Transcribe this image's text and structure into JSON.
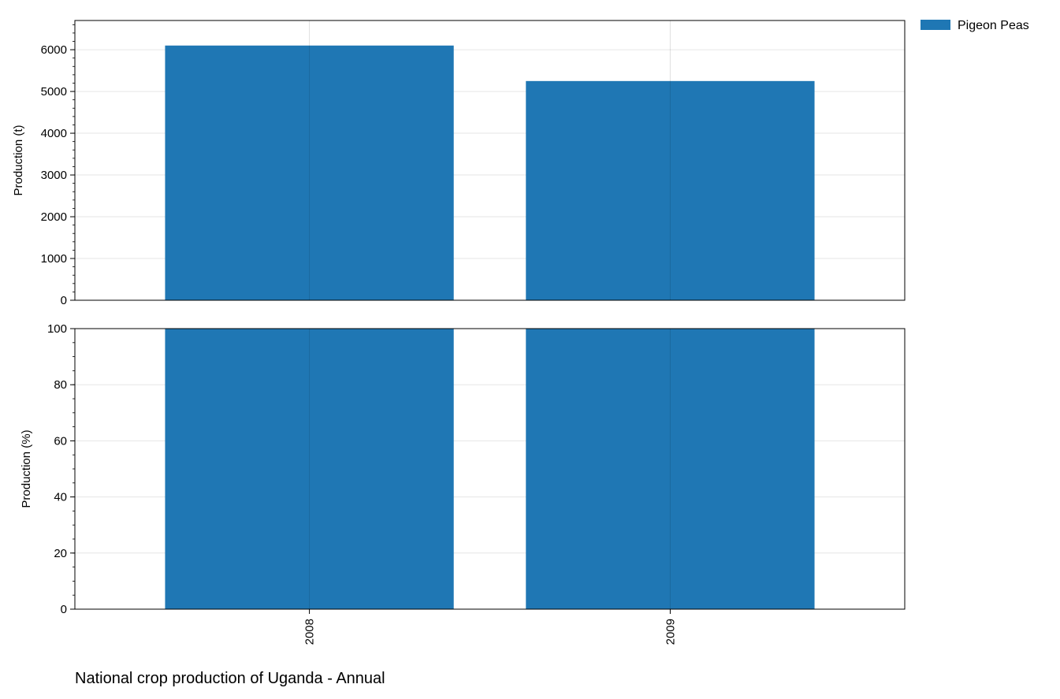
{
  "chart_data": {
    "type": "bar",
    "categories": [
      "2008",
      "2009"
    ],
    "series": [
      {
        "name": "Pigeon Peas",
        "color": "#1f77b4",
        "values_absolute": [
          6100,
          5250
        ],
        "values_percent": [
          100,
          100
        ]
      }
    ],
    "panels": [
      {
        "ylabel": "Production (t)",
        "ylim": [
          0,
          6700
        ],
        "yticks": [
          0,
          1000,
          2000,
          3000,
          4000,
          5000,
          6000
        ],
        "yticks_minor_step": 200,
        "value_key": "values_absolute"
      },
      {
        "ylabel": "Production (%)",
        "ylim": [
          0,
          100
        ],
        "yticks": [
          0,
          20,
          40,
          60,
          80,
          100
        ],
        "yticks_minor_step": 5,
        "value_key": "values_percent"
      }
    ],
    "caption": "National crop production of Uganda - Annual",
    "legend_position": "top-right outside",
    "grid": true
  }
}
